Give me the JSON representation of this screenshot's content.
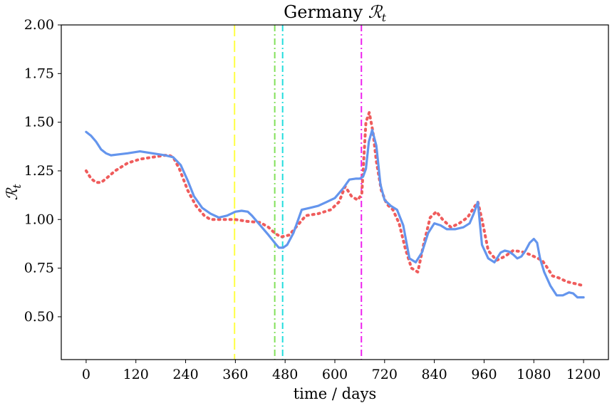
{
  "chart_data": {
    "type": "line",
    "title_prefix": "Germany",
    "title_symbol": "ℛ",
    "title_subscript": "t",
    "xlabel": "time / days",
    "ylabel_symbol": "ℛ",
    "ylabel_subscript": "t",
    "xlim": [
      -60,
      1260
    ],
    "ylim": [
      0.28,
      2.0
    ],
    "xticks": [
      0,
      120,
      240,
      360,
      480,
      600,
      720,
      840,
      960,
      1080,
      1200
    ],
    "yticks": [
      "0.50",
      "0.75",
      "1.00",
      "1.25",
      "1.50",
      "1.75",
      "2.00"
    ],
    "grid": false,
    "series": [
      {
        "color": "#6495ed",
        "style": "solid",
        "x": [
          0,
          12,
          24,
          36,
          48,
          60,
          80,
          100,
          130,
          160,
          190,
          210,
          228,
          245,
          260,
          280,
          300,
          320,
          340,
          360,
          375,
          390,
          400,
          420,
          440,
          455,
          465,
          475,
          485,
          500,
          520,
          540,
          560,
          580,
          600,
          620,
          635,
          650,
          660,
          668,
          675,
          682,
          690,
          700,
          710,
          720,
          735,
          750,
          765,
          780,
          795,
          810,
          825,
          840,
          855,
          870,
          890,
          910,
          925,
          935,
          945,
          955,
          970,
          985,
          1000,
          1010,
          1020,
          1030,
          1040,
          1050,
          1060,
          1070,
          1080,
          1088,
          1095,
          1105,
          1120,
          1135,
          1150,
          1165,
          1175,
          1185,
          1200
        ],
        "y": [
          1.45,
          1.43,
          1.4,
          1.36,
          1.34,
          1.33,
          1.335,
          1.34,
          1.35,
          1.34,
          1.33,
          1.32,
          1.28,
          1.2,
          1.12,
          1.06,
          1.03,
          1.01,
          1.02,
          1.04,
          1.045,
          1.04,
          1.02,
          0.97,
          0.92,
          0.88,
          0.855,
          0.855,
          0.87,
          0.93,
          1.05,
          1.06,
          1.07,
          1.09,
          1.11,
          1.16,
          1.205,
          1.21,
          1.21,
          1.22,
          1.26,
          1.4,
          1.46,
          1.38,
          1.18,
          1.1,
          1.07,
          1.05,
          0.97,
          0.8,
          0.78,
          0.83,
          0.93,
          0.98,
          0.97,
          0.95,
          0.95,
          0.96,
          0.98,
          1.03,
          1.09,
          0.87,
          0.8,
          0.78,
          0.83,
          0.84,
          0.835,
          0.82,
          0.8,
          0.81,
          0.84,
          0.88,
          0.9,
          0.88,
          0.8,
          0.73,
          0.66,
          0.61,
          0.61,
          0.625,
          0.62,
          0.6,
          0.6
        ]
      },
      {
        "color": "#ef5c5c",
        "style": "dotted",
        "x": [
          0,
          12,
          24,
          36,
          48,
          70,
          100,
          130,
          160,
          190,
          200,
          210,
          225,
          245,
          265,
          285,
          300,
          330,
          360,
          390,
          420,
          440,
          455,
          470,
          490,
          510,
          530,
          560,
          590,
          610,
          625,
          640,
          655,
          665,
          675,
          683,
          692,
          700,
          712,
          725,
          740,
          755,
          770,
          785,
          800,
          815,
          830,
          845,
          860,
          880,
          900,
          920,
          935,
          945,
          955,
          970,
          990,
          1010,
          1030,
          1050,
          1070,
          1090,
          1100,
          1110,
          1125,
          1140,
          1160,
          1180,
          1200
        ],
        "y": [
          1.25,
          1.21,
          1.19,
          1.19,
          1.21,
          1.25,
          1.29,
          1.31,
          1.32,
          1.33,
          1.33,
          1.32,
          1.26,
          1.15,
          1.07,
          1.02,
          1.0,
          1.0,
          1.0,
          0.99,
          0.985,
          0.96,
          0.93,
          0.91,
          0.92,
          0.97,
          1.02,
          1.03,
          1.05,
          1.09,
          1.17,
          1.12,
          1.1,
          1.13,
          1.5,
          1.55,
          1.45,
          1.3,
          1.15,
          1.08,
          1.05,
          0.98,
          0.85,
          0.75,
          0.73,
          0.88,
          1.01,
          1.04,
          1.0,
          0.96,
          0.98,
          1.01,
          1.06,
          1.09,
          1.0,
          0.84,
          0.79,
          0.81,
          0.84,
          0.835,
          0.82,
          0.8,
          0.79,
          0.76,
          0.71,
          0.7,
          0.68,
          0.67,
          0.66
        ]
      }
    ],
    "vlines": [
      {
        "x": 358,
        "color": "#ffff44",
        "style": "dashed"
      },
      {
        "x": 455,
        "color": "#82e05a",
        "style": "dashdot"
      },
      {
        "x": 474,
        "color": "#22dddd",
        "style": "dashdot"
      },
      {
        "x": 664,
        "color": "#ee22ee",
        "style": "dashdot"
      }
    ]
  }
}
